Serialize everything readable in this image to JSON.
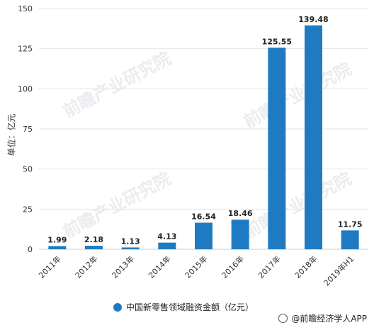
{
  "chart_data": {
    "type": "bar",
    "categories": [
      "2011年",
      "2012年",
      "2013年",
      "2014年",
      "2015年",
      "2016年",
      "2017年",
      "2018年",
      "2019年H1"
    ],
    "series": [
      {
        "name": "中国新零售领域融资金额（亿元）",
        "values": [
          1.99,
          2.18,
          1.13,
          4.13,
          16.54,
          18.46,
          125.55,
          139.48,
          11.75
        ]
      }
    ],
    "data_labels": [
      "1.99",
      "2.18",
      "1.13",
      "4.13",
      "16.54",
      "18.46",
      "125.55",
      "139.48",
      "11.75"
    ],
    "ylabel": "单位：亿元",
    "ylim": [
      0,
      150
    ],
    "yticks": [
      "0",
      "25",
      "50",
      "75",
      "100",
      "125",
      "150"
    ],
    "grid": true,
    "legend_position": "bottom",
    "bar_color": "#1f7bc1"
  },
  "watermark": {
    "text": "前瞻产业研究院"
  },
  "credit": {
    "text": "@前瞻经济学人APP"
  }
}
